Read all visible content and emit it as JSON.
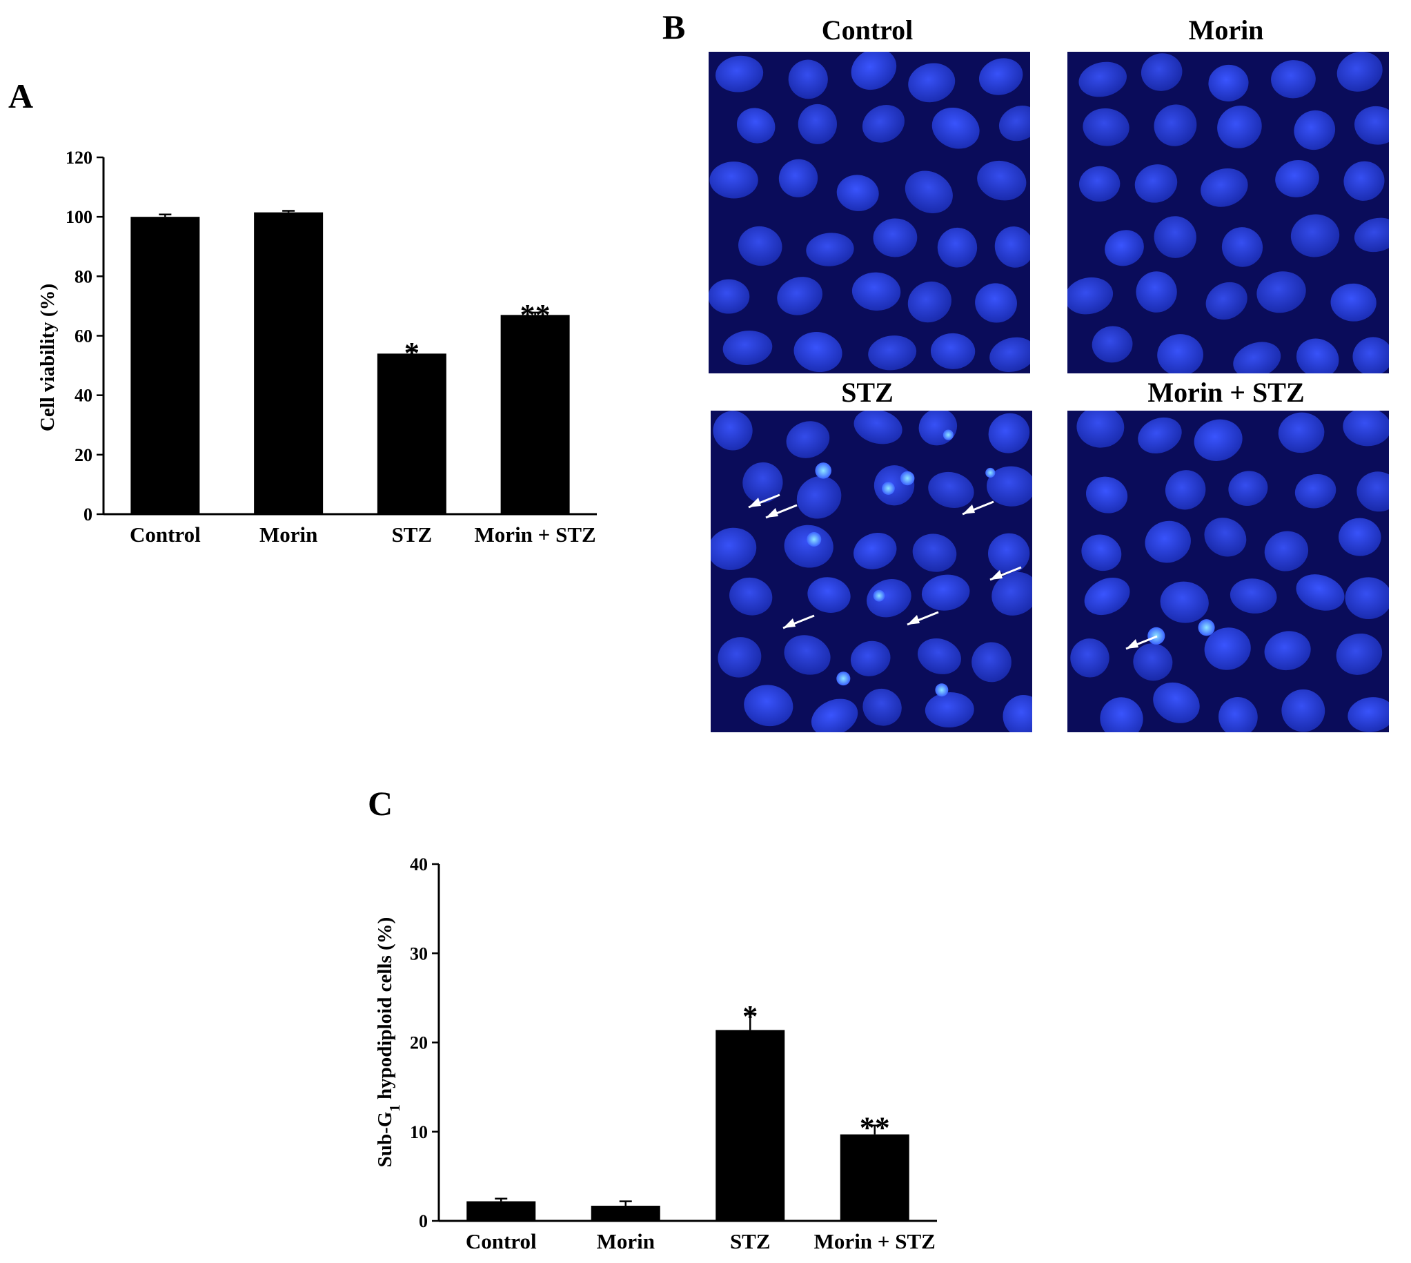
{
  "panels": {
    "a": "A",
    "b": "B",
    "c": "C"
  },
  "micrographs": [
    {
      "label": "Control"
    },
    {
      "label": "Morin"
    },
    {
      "label": "STZ"
    },
    {
      "label": "Morin + STZ"
    }
  ],
  "colors": {
    "bar": "#000000",
    "nucleus": "#2a3fd6",
    "background": "#0a0c5a",
    "apoptotic": "#8fe6ff",
    "arrow": "#ffffff"
  },
  "chart_data": [
    {
      "type": "bar",
      "panel": "A",
      "categories": [
        "Control",
        "Morin",
        "STZ",
        "Morin + STZ"
      ],
      "values": [
        100,
        101.5,
        54,
        67
      ],
      "errors": [
        0.8,
        0.5,
        1,
        0.8
      ],
      "annotations": [
        "",
        "",
        "*",
        "**"
      ],
      "ylabel": "Cell viability (%)",
      "ylim": [
        0,
        120
      ],
      "yticks": [
        0,
        20,
        40,
        60,
        80,
        100,
        120
      ],
      "grid": false
    },
    {
      "type": "bar",
      "panel": "C",
      "categories": [
        "Control",
        "Morin",
        "STZ",
        "Morin + STZ"
      ],
      "values": [
        2.2,
        1.7,
        21.4,
        9.7
      ],
      "errors": [
        0.3,
        0.5,
        1.8,
        1
      ],
      "annotations": [
        "",
        "",
        "*",
        "**"
      ],
      "ylabel_main": "Sub-G",
      "ylabel_sub": "1",
      "ylabel_rest": " hypodiploid cells (%)",
      "ylim": [
        0,
        40
      ],
      "yticks": [
        0,
        10,
        20,
        30,
        40
      ],
      "grid": false
    }
  ]
}
